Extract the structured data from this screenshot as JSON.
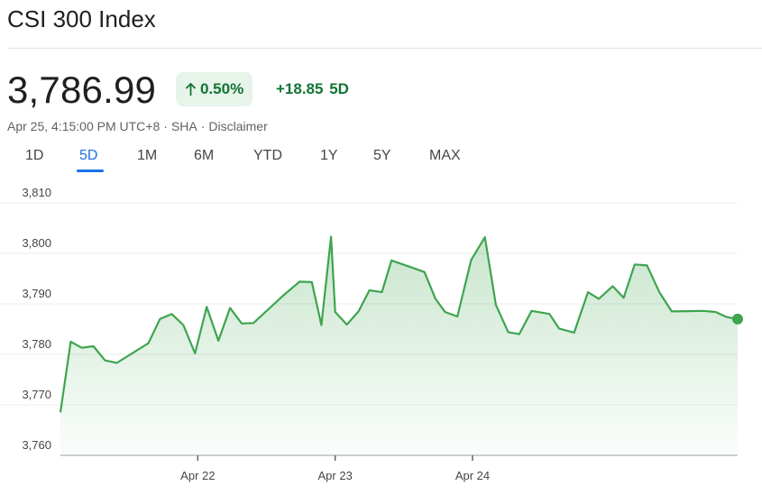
{
  "header": {
    "title": "CSI 300 Index"
  },
  "quote": {
    "price": "3,786.99",
    "percent_change": "0.50%",
    "abs_change": "+18.85",
    "period": "5D",
    "timestamp": "Apr 25, 4:15:00 PM UTC+8",
    "exchange": "SHA",
    "separator": "·",
    "disclaimer": "Disclaimer"
  },
  "tabs": [
    "1D",
    "5D",
    "1M",
    "6M",
    "YTD",
    "1Y",
    "5Y",
    "MAX"
  ],
  "active_tab": "5D",
  "colors": {
    "line": "#3ea44f",
    "positive_text": "#137333",
    "badge_bg": "#e6f4ea",
    "accent": "#1a73e8"
  },
  "icons": {
    "change_arrow": "arrow-up-icon"
  },
  "chart_data": {
    "type": "area",
    "title": "",
    "ylim": [
      3760,
      3810
    ],
    "yticks": [
      "3,810",
      "3,800",
      "3,790",
      "3,780",
      "3,770",
      "3,760"
    ],
    "ytick_values": [
      3810,
      3800,
      3790,
      3780,
      3770,
      3760
    ],
    "grid": true,
    "xtick_labels": [
      "Apr 22",
      "Apr 23",
      "Apr 24"
    ],
    "xtick_index": [
      1,
      2,
      3
    ],
    "x_range": [
      0,
      4.93
    ],
    "series": [
      {
        "x": [
          0,
          0.075,
          0.155,
          0.24,
          0.325,
          0.41,
          0.64,
          0.725,
          0.81,
          0.895,
          0.98,
          1.065,
          1.15,
          1.235,
          1.32,
          1.405,
          1.62,
          1.74,
          1.83,
          1.9,
          1.97,
          2.0,
          2.085,
          2.17,
          2.25,
          2.34,
          2.41,
          2.65,
          2.73,
          2.8,
          2.89,
          2.99,
          3.09,
          3.17,
          3.26,
          3.34,
          3.43,
          3.56,
          3.63,
          3.74,
          3.84,
          3.92,
          4.02,
          4.1,
          4.18,
          4.27,
          4.36,
          4.45,
          4.68,
          4.77,
          4.85,
          4.93
        ],
        "y": [
          3768.5,
          3782.5,
          3781.3,
          3781.6,
          3778.8,
          3778.3,
          3782.2,
          3787.0,
          3788.0,
          3785.8,
          3780.2,
          3789.4,
          3782.7,
          3789.2,
          3786.1,
          3786.2,
          3791.6,
          3794.4,
          3794.3,
          3785.8,
          3803.3,
          3788.4,
          3785.9,
          3788.5,
          3792.7,
          3792.3,
          3798.6,
          3796.3,
          3791.0,
          3788.4,
          3787.5,
          3798.7,
          3803.2,
          3789.8,
          3784.4,
          3784.0,
          3788.6,
          3788.0,
          3785.1,
          3784.3,
          3792.3,
          3791.0,
          3793.5,
          3791.2,
          3797.8,
          3797.6,
          3792.3,
          3788.5,
          3788.6,
          3788.4,
          3787.4,
          3786.99
        ]
      }
    ]
  }
}
